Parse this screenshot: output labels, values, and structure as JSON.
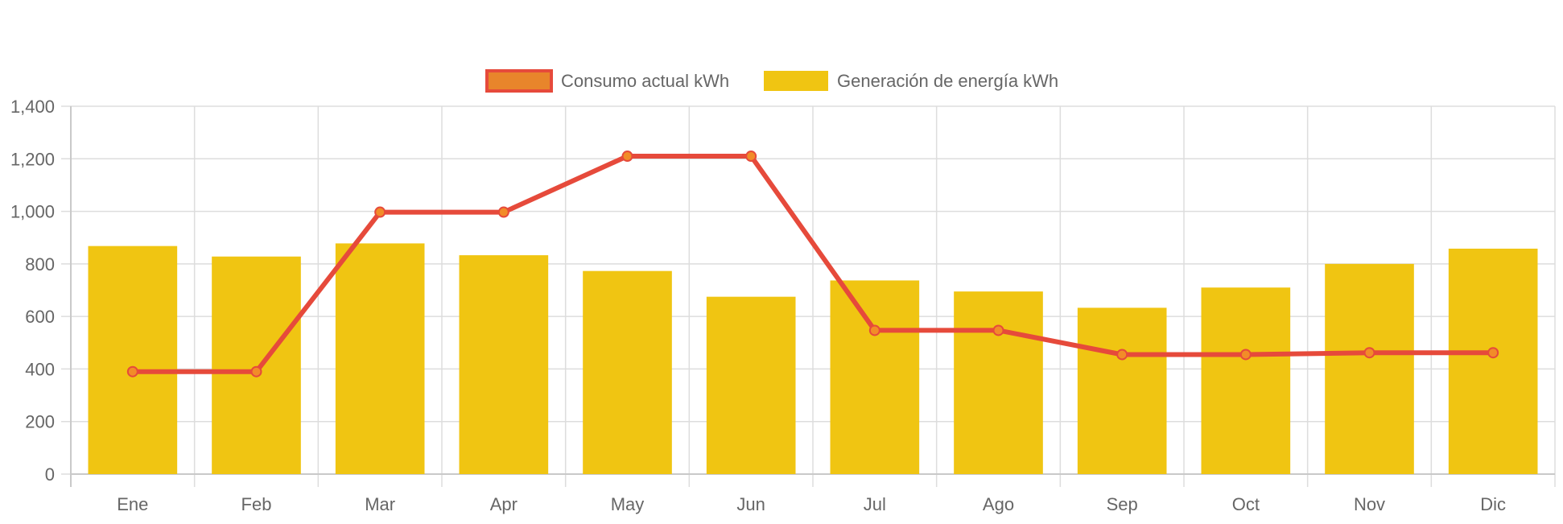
{
  "chart_data": {
    "type": "bar",
    "title": "",
    "xlabel": "",
    "ylabel": "",
    "categories": [
      "Ene",
      "Feb",
      "Mar",
      "Apr",
      "May",
      "Jun",
      "Jul",
      "Ago",
      "Sep",
      "Oct",
      "Nov",
      "Dic"
    ],
    "ylim": [
      0,
      1400
    ],
    "yticks": [
      "0",
      "200",
      "400",
      "600",
      "800",
      "1,000",
      "1,200",
      "1,400"
    ],
    "grid": true,
    "legend_position": "top",
    "series": [
      {
        "name": "Consumo actual kWh",
        "type": "line",
        "color": "#e64a3b",
        "marker_color": "#f28c28",
        "values": [
          390,
          390,
          997,
          997,
          1210,
          1210,
          547,
          547,
          455,
          455,
          462,
          462
        ]
      },
      {
        "name": "Generación de energía kWh",
        "type": "bar",
        "color": "#f0c512",
        "values": [
          868,
          828,
          878,
          833,
          773,
          675,
          737,
          695,
          633,
          710,
          800,
          858
        ]
      }
    ]
  }
}
